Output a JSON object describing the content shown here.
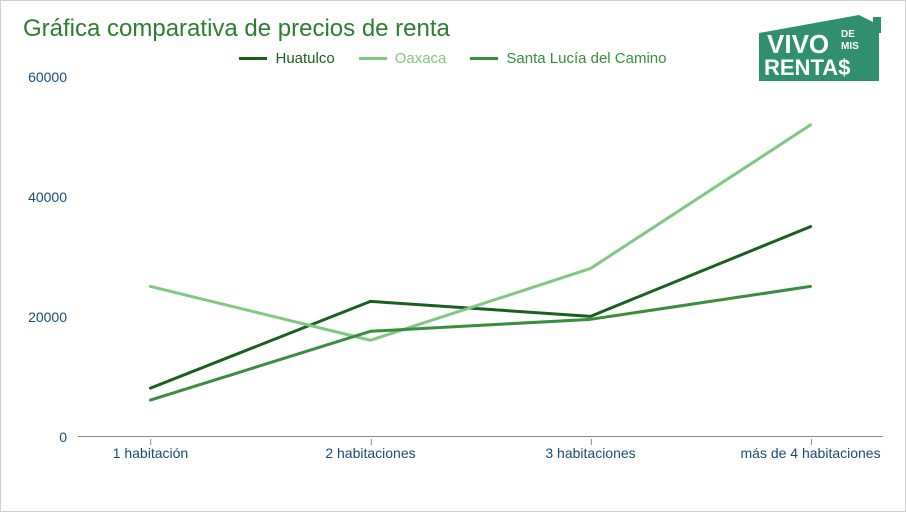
{
  "title": "Gráfica comparativa de precios de renta",
  "logo": {
    "line1": "VIVO",
    "line1_side": "DE\nMIS",
    "line2": "RENTA$",
    "fill": "#2f8f6f",
    "text_color": "#ffffff"
  },
  "chart": {
    "type": "line",
    "background_color": "#ffffff",
    "border_color": "#d0d0d0",
    "title_color": "#2e7d32",
    "title_fontsize": 24,
    "axis_label_color": "#1a4b78",
    "axis_label_fontsize": 14,
    "axis_line_color": "#888888",
    "ylim": [
      0,
      60000
    ],
    "ytick_step": 20000,
    "yticks": [
      0,
      20000,
      40000,
      60000
    ],
    "categories": [
      "1 habitación",
      "2 habitaciones",
      "3 habitaciones",
      "más de 4 habitaciones"
    ],
    "line_width": 3,
    "series": [
      {
        "name": "Huatulco",
        "color": "#1b5e20",
        "values": [
          8000,
          22500,
          20000,
          35000
        ]
      },
      {
        "name": "Oaxaca",
        "color": "#81c784",
        "values": [
          25000,
          16000,
          28000,
          52000
        ]
      },
      {
        "name": "Santa Lucía del Camino",
        "color": "#388e3c",
        "values": [
          6000,
          17500,
          19500,
          25000
        ]
      }
    ]
  }
}
